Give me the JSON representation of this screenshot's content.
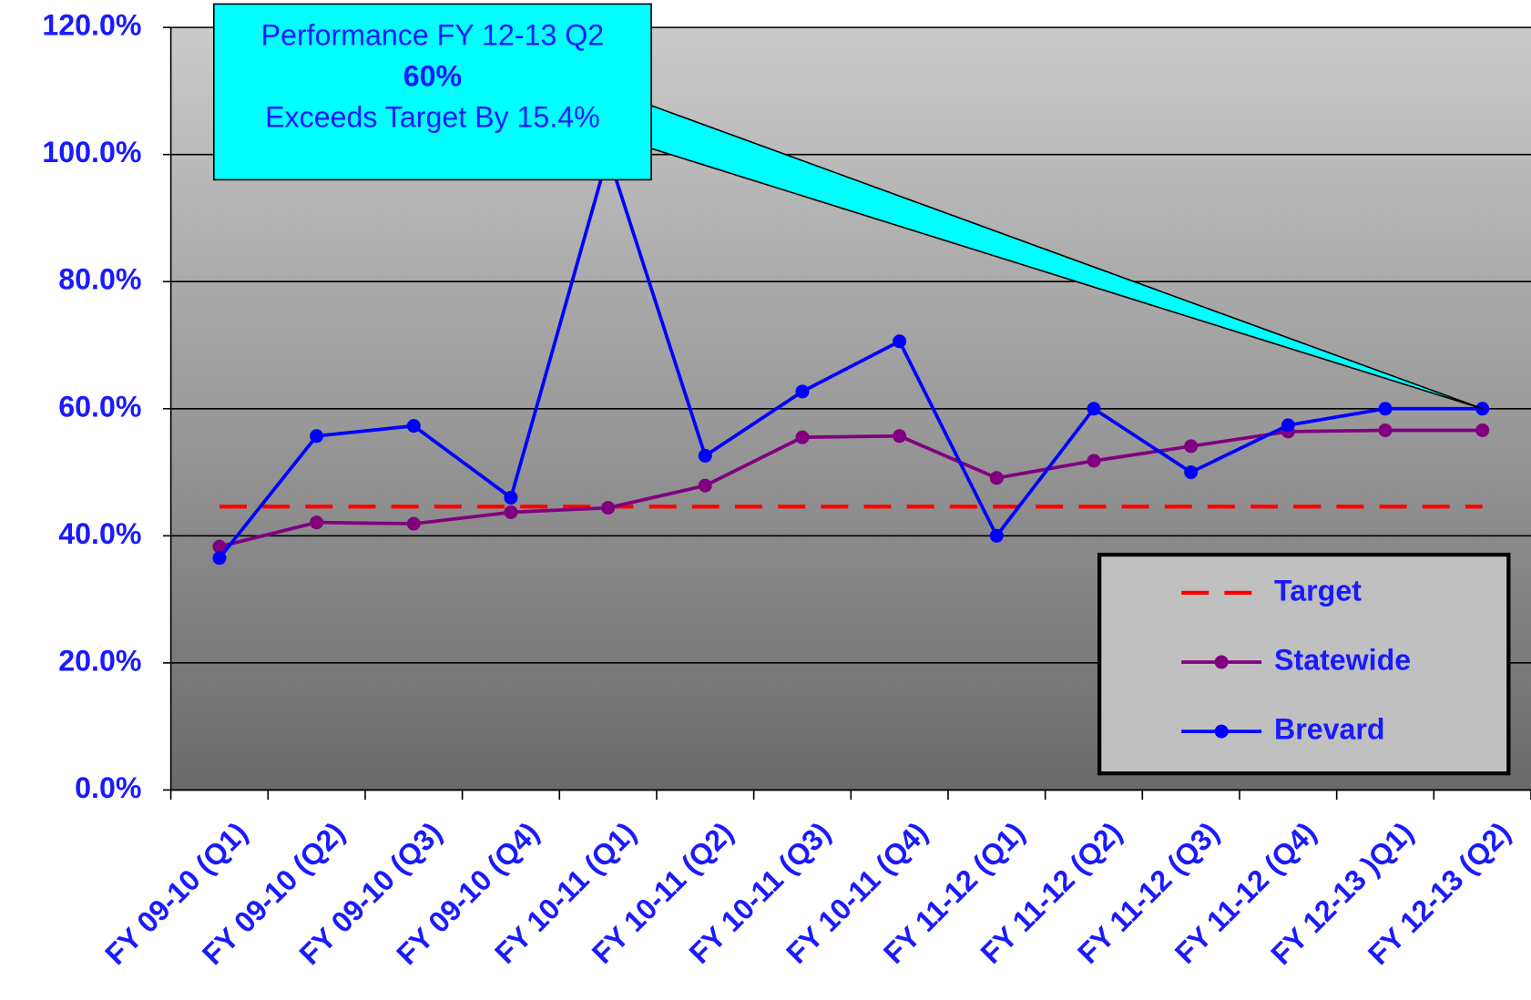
{
  "chart_data": {
    "type": "line",
    "categories": [
      "FY 09-10 (Q1)",
      "FY 09-10 (Q2)",
      "FY 09-10 (Q3)",
      "FY 09-10 (Q4)",
      "FY 10-11 (Q1)",
      "FY 10-11 (Q2)",
      "FY 10-11 (Q3)",
      "FY 10-11 (Q4)",
      "FY 11-12 (Q1)",
      "FY 11-12 (Q2)",
      "FY 11-12 (Q3)",
      "FY 11-12 (Q4)",
      "FY 12-13 )Q1)",
      "FY 12-13 (Q2)"
    ],
    "series": [
      {
        "name": "Target",
        "color": "#ff0000",
        "dashed": true,
        "markers": false,
        "values": [
          44.6,
          44.6,
          44.6,
          44.6,
          44.6,
          44.6,
          44.6,
          44.6,
          44.6,
          44.6,
          44.6,
          44.6,
          44.6,
          44.6
        ]
      },
      {
        "name": "Statewide",
        "color": "#800080",
        "dashed": false,
        "markers": true,
        "values": [
          38.3,
          42.1,
          41.9,
          43.7,
          44.4,
          47.9,
          55.5,
          55.7,
          49.1,
          51.8,
          54.1,
          56.4,
          56.6,
          56.6
        ]
      },
      {
        "name": "Brevard",
        "color": "#0000ff",
        "dashed": false,
        "markers": true,
        "values": [
          36.5,
          55.7,
          57.3,
          46.0,
          100.0,
          52.6,
          62.7,
          70.6,
          40.0,
          60.0,
          50.0,
          57.4,
          60.0,
          60.0
        ]
      }
    ],
    "ylim": [
      0,
      120
    ],
    "yticks": [
      {
        "value": 0,
        "label": "0.0%"
      },
      {
        "value": 20,
        "label": "20.0%"
      },
      {
        "value": 40,
        "label": "40.0%"
      },
      {
        "value": 60,
        "label": "60.0%"
      },
      {
        "value": 80,
        "label": "80.0%"
      },
      {
        "value": 100,
        "label": "100.0%"
      },
      {
        "value": 120,
        "label": "120.0%"
      }
    ],
    "grid": true,
    "legend": "lower right",
    "annotation": [
      "Performance FY 12-13 Q2",
      "60%",
      "Exceeds Target By 15.4%"
    ]
  }
}
